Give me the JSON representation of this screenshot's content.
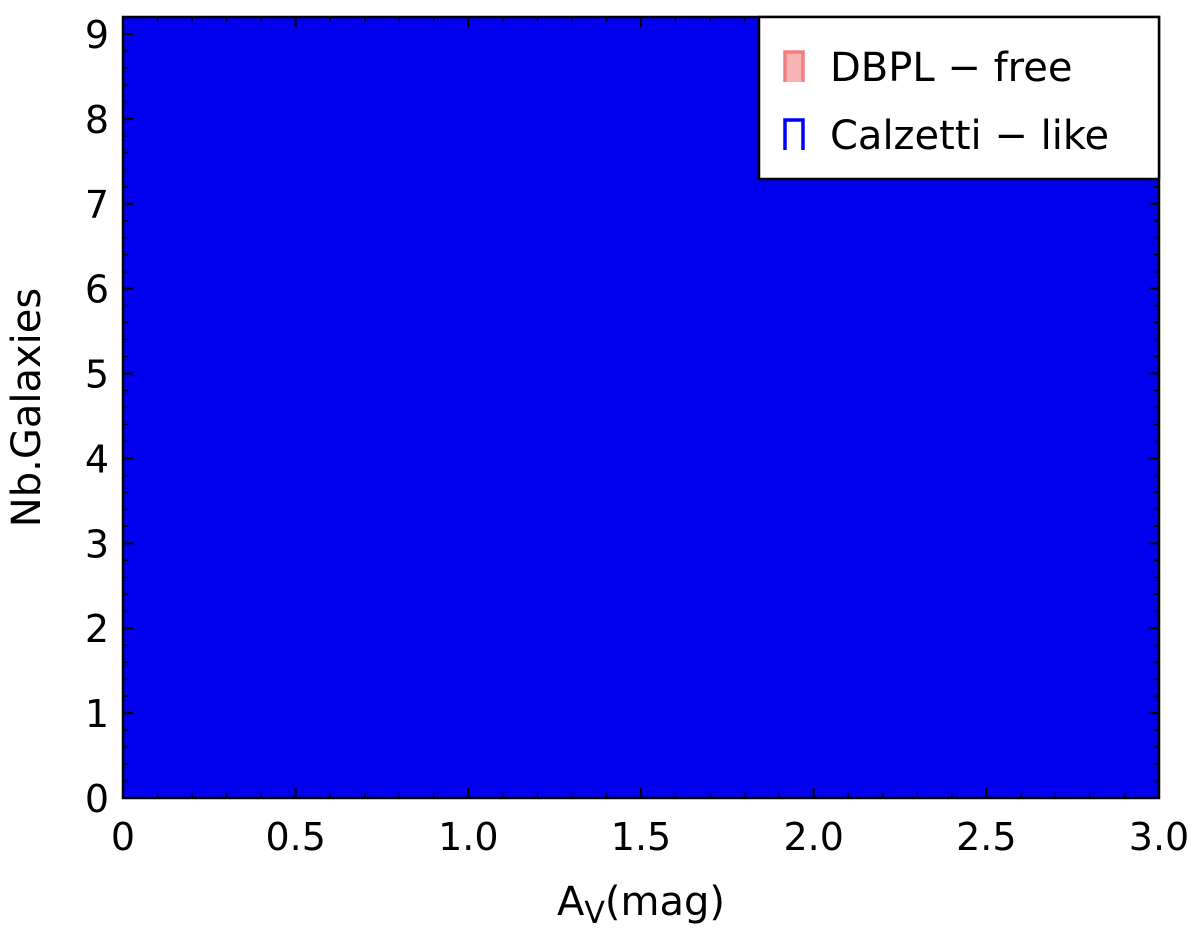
{
  "chart_data": {
    "type": "bar",
    "xlabel_main": "A",
    "xlabel_sub": "V",
    "xlabel_tail": "(mag)",
    "ylabel": "Nb.Galaxies",
    "xlim": [
      0,
      3.0
    ],
    "ylim": [
      0,
      9.2
    ],
    "xticks": [
      {
        "value": 0,
        "label": "0"
      },
      {
        "value": 0.5,
        "label": "0.5"
      },
      {
        "value": 1.0,
        "label": "1.0"
      },
      {
        "value": 1.5,
        "label": "1.5"
      },
      {
        "value": 2.0,
        "label": "2.0"
      },
      {
        "value": 2.5,
        "label": "2.5"
      },
      {
        "value": 3.0,
        "label": "3.0"
      }
    ],
    "yticks": [
      {
        "value": 0,
        "label": "0"
      },
      {
        "value": 1,
        "label": "1"
      },
      {
        "value": 2,
        "label": "2"
      },
      {
        "value": 3,
        "label": "3"
      },
      {
        "value": 4,
        "label": "4"
      },
      {
        "value": 5,
        "label": "5"
      },
      {
        "value": 6,
        "label": "6"
      },
      {
        "value": 7,
        "label": "7"
      },
      {
        "value": 8,
        "label": "8"
      },
      {
        "value": 9,
        "label": "9"
      }
    ],
    "xminor_step": 0.1,
    "yminor_step": 0.2,
    "grid": false,
    "legend_position": "top-right",
    "series": [
      {
        "name": "DBPL − free",
        "color": "#f08080",
        "fill_color": "#f6b4b4",
        "style": "step-filled",
        "bins": []
      },
      {
        "name": "Calzetti − like",
        "color": "#0000ff",
        "fill_color": "#0000ee",
        "style": "step-filled",
        "bins": [
          {
            "x0": 0,
            "x1": 3.0,
            "value": 9.2
          }
        ]
      }
    ]
  }
}
